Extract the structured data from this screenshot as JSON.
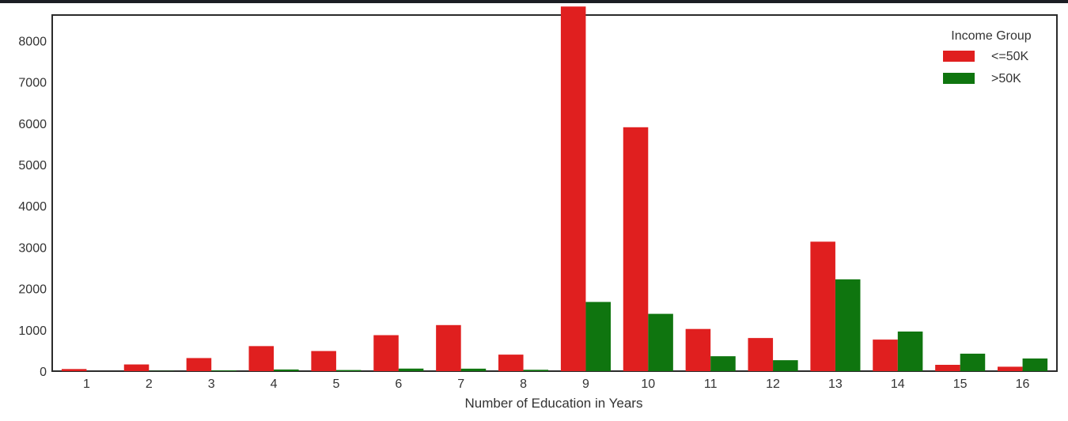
{
  "colors": {
    "series_1": "#e01f1f",
    "series_2": "#0f750f",
    "frame": "#2b2b2b"
  },
  "chart_data": {
    "type": "bar",
    "title": "",
    "xlabel": "Number of Education in Years",
    "ylabel": "",
    "categories": [
      "1",
      "2",
      "3",
      "4",
      "5",
      "6",
      "7",
      "8",
      "9",
      "10",
      "11",
      "12",
      "13",
      "14",
      "15",
      "16"
    ],
    "yticks": [
      0,
      1000,
      2000,
      3000,
      4000,
      5000,
      6000,
      7000,
      8000
    ],
    "ylim": [
      0,
      8620
    ],
    "grid": false,
    "legend": {
      "title": "Income Group",
      "placement": "top-right"
    },
    "series": [
      {
        "name": "<=50K",
        "values": [
          51,
          162,
          317,
          606,
          487,
          871,
          1115,
          400,
          8826,
          5904,
          1021,
          802,
          3134,
          764,
          153,
          107
        ]
      },
      {
        "name": ">50K",
        "values": [
          0,
          6,
          16,
          40,
          27,
          62,
          60,
          33,
          1675,
          1387,
          361,
          265,
          2221,
          959,
          423,
          306
        ]
      }
    ]
  }
}
